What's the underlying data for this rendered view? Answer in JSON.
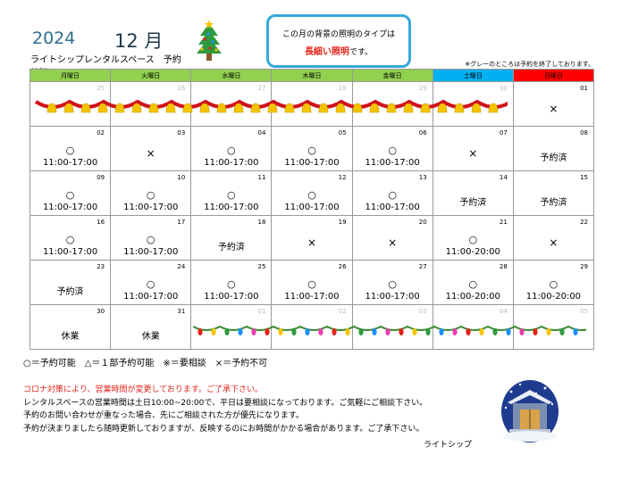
{
  "header": {
    "year": "2024",
    "month": "12 月",
    "subtitle": "ライトシップレンタルスペース　予約状況",
    "note_line1": "この月の背景の照明のタイプは",
    "note_highlight": "長細い照明",
    "note_suffix": "です。",
    "gray_note": "※グレーのところは予約を終了しております。"
  },
  "weekdays": [
    "月曜日",
    "火曜日",
    "水曜日",
    "木曜日",
    "金曜日",
    "土曜日",
    "日曜日"
  ],
  "weeks": [
    [
      {
        "d": "25",
        "g": true
      },
      {
        "d": "26",
        "g": true
      },
      {
        "d": "27",
        "g": true
      },
      {
        "d": "28",
        "g": true
      },
      {
        "d": "29",
        "g": true
      },
      {
        "d": "30",
        "g": true
      },
      {
        "d": "01",
        "m": "×"
      }
    ],
    [
      {
        "d": "02",
        "m": "○",
        "t": "11:00-17:00"
      },
      {
        "d": "03",
        "m": "×"
      },
      {
        "d": "04",
        "m": "○",
        "t": "11:00-17:00"
      },
      {
        "d": "05",
        "m": "○",
        "t": "11:00-17:00"
      },
      {
        "d": "06",
        "m": "○",
        "t": "11:00-17:00"
      },
      {
        "d": "07",
        "m": "×"
      },
      {
        "d": "08",
        "w": "予約済"
      }
    ],
    [
      {
        "d": "09",
        "m": "○",
        "t": "11:00-17:00"
      },
      {
        "d": "10",
        "m": "○",
        "t": "11:00-17:00"
      },
      {
        "d": "11",
        "m": "○",
        "t": "11:00-17:00"
      },
      {
        "d": "12",
        "m": "○",
        "t": "11:00-17:00"
      },
      {
        "d": "13",
        "m": "○",
        "t": "11:00-17:00"
      },
      {
        "d": "14",
        "w": "予約済"
      },
      {
        "d": "15",
        "w": "予約済"
      }
    ],
    [
      {
        "d": "16",
        "m": "○",
        "t": "11:00-17:00"
      },
      {
        "d": "17",
        "m": "○",
        "t": "11:00-17:00"
      },
      {
        "d": "18",
        "w": "予約済"
      },
      {
        "d": "19",
        "m": "×"
      },
      {
        "d": "20",
        "m": "×"
      },
      {
        "d": "21",
        "m": "○",
        "t": "11:00-20:00"
      },
      {
        "d": "22",
        "m": "×"
      }
    ],
    [
      {
        "d": "23",
        "w": "予約済"
      },
      {
        "d": "24",
        "m": "○",
        "t": "11:00-17:00"
      },
      {
        "d": "25",
        "m": "○",
        "t": "11:00-17:00"
      },
      {
        "d": "26",
        "m": "○",
        "t": "11:00-17:00"
      },
      {
        "d": "27",
        "m": "○",
        "t": "11:00-17:00"
      },
      {
        "d": "28",
        "m": "○",
        "t": "11:00-20:00"
      },
      {
        "d": "29",
        "m": "○",
        "t": "11:00-20:00"
      }
    ],
    [
      {
        "d": "30",
        "w": "休業"
      },
      {
        "d": "31",
        "w": "休業"
      },
      {
        "d": "01",
        "g": true
      },
      {
        "d": "02",
        "g": true
      },
      {
        "d": "03",
        "g": true
      },
      {
        "d": "04",
        "g": true
      },
      {
        "d": "05",
        "g": true
      }
    ]
  ],
  "legend": "○＝予約可能　△＝１部予約可能　※＝要相談　×＝予約不可",
  "notes": {
    "red": "コロナ対策により、営業時間が変更しております。ご了承下さい。",
    "line2": "レンタルスペースの営業時間は土日10:00~20:00で、平日は要相談になっております。ご気軽にご相談下さい。",
    "line3": "予約のお問い合わせが重なった場合、先にご相談された方が優先になります。",
    "line4": "予約が決まりましたら随時更新しておりますが、反映するのにお時間がかかる場合があります。ご了承下さい。"
  },
  "signature": "ライトシップ",
  "colors": {
    "weekday": "#92d050",
    "saturday": "#00b0f0",
    "sunday": "#ff0000",
    "note_border": "#36a8d8",
    "red_text": "#e2231a"
  }
}
